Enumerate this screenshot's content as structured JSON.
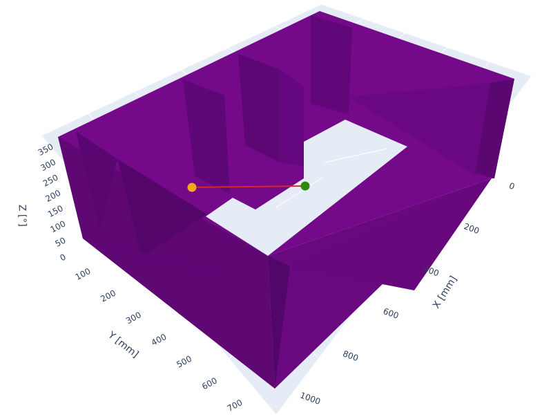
{
  "chart_data": {
    "type": "scatter3d",
    "axes": {
      "x": {
        "title": "X [mm]",
        "ticks": [
          0,
          200,
          400,
          600,
          800,
          1000
        ],
        "range": [
          0,
          1040
        ]
      },
      "y": {
        "title": "Y [mm]",
        "ticks": [
          100,
          200,
          300,
          400,
          500,
          600,
          700
        ],
        "range": [
          0,
          760
        ]
      },
      "z": {
        "title": "Z [°]",
        "ticks": [
          0,
          50,
          100,
          150,
          200,
          250,
          300,
          350
        ],
        "range": [
          0,
          360
        ]
      }
    },
    "grid": true,
    "background_color": "#e5ecf6",
    "obstacle_color": "#6f0a85",
    "path_color": "#d62728",
    "start_point": {
      "color": "#f2a91e"
    },
    "goal_point": {
      "color": "#2e8b10"
    },
    "path": {
      "x": [
        860,
        100
      ],
      "y": [
        90,
        650
      ],
      "z": [
        180,
        180
      ]
    }
  }
}
